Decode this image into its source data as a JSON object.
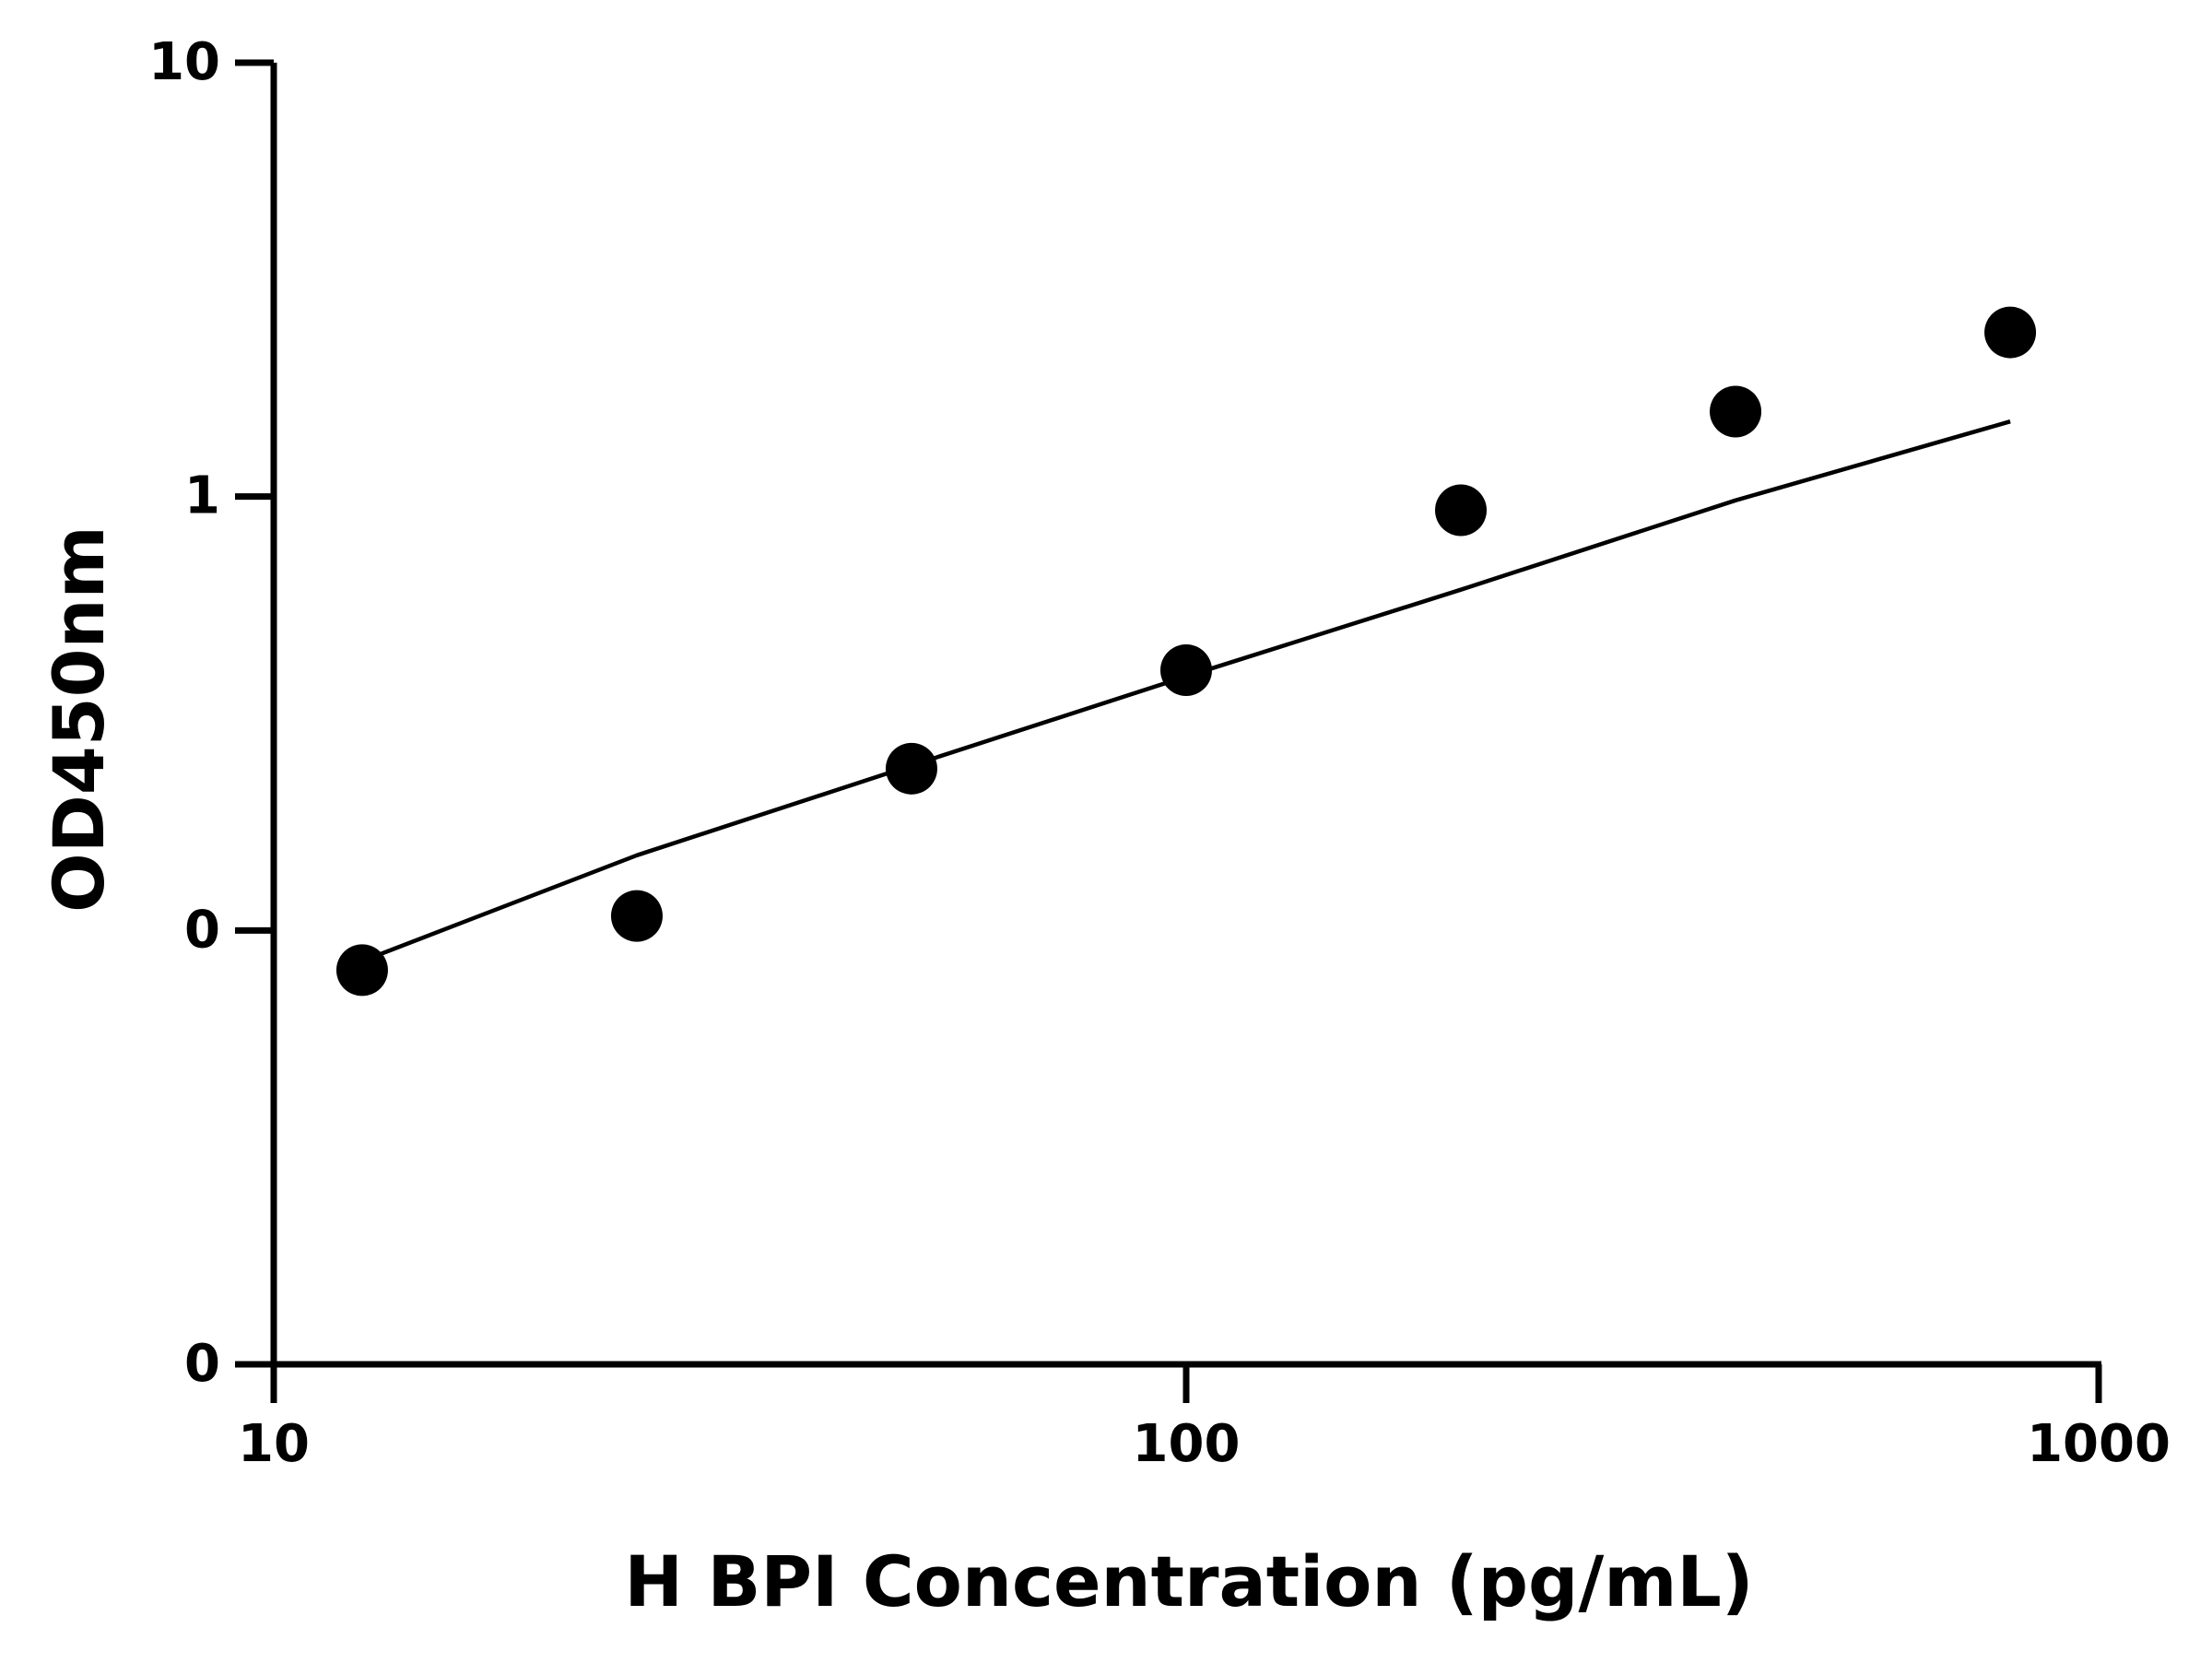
{
  "chart_data": {
    "type": "scatter",
    "title": "",
    "xlabel": "H BPI Concentration (pg/mL)",
    "ylabel": "OD450nm",
    "x_scale": "log",
    "y_scale": "log",
    "xlim": [
      10,
      1000
    ],
    "xticks": [
      10,
      100,
      1000
    ],
    "xtick_labels": [
      "10",
      "100",
      "1000"
    ],
    "ylim": [
      0.01,
      10
    ],
    "yticks": [
      0.01,
      0.1,
      1,
      10
    ],
    "ytick_labels": [
      "0",
      "0",
      "1",
      "10"
    ],
    "grid": false,
    "legend": "none",
    "series": [
      {
        "x": [
          12.5,
          25,
          50,
          100,
          200,
          400,
          800
        ],
        "y": [
          0.081,
          0.108,
          0.236,
          0.398,
          0.93,
          1.57,
          2.39
        ]
      }
    ],
    "fit_curve": {
      "type": "line",
      "x": [
        12.5,
        25,
        50,
        100,
        200,
        400,
        800
      ],
      "y": [
        0.085,
        0.149,
        0.24,
        0.385,
        0.61,
        0.98,
        1.49
      ]
    },
    "colors": {
      "marker": "#000000",
      "line": "#000000",
      "axis": "#000000"
    }
  }
}
